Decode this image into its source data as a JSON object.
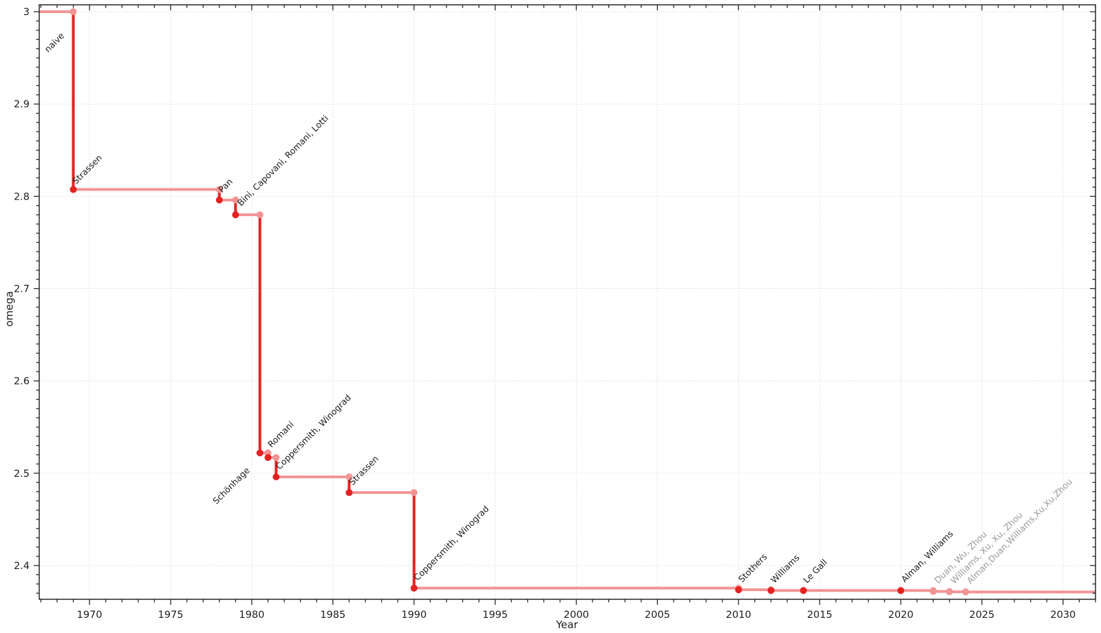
{
  "chart_data": {
    "type": "line",
    "subtype": "step",
    "title": "",
    "xlabel": "Year",
    "ylabel": "omega",
    "legend": "none",
    "grid": true,
    "xlim": [
      1966.9,
      2032.0
    ],
    "ylim": [
      2.3634,
      3.0075
    ],
    "xticks": [
      1970,
      1975,
      1980,
      1985,
      1990,
      1995,
      2000,
      2005,
      2010,
      2015,
      2020,
      2025,
      2030
    ],
    "yticks": [
      3,
      2.9,
      2.8,
      2.7,
      2.6,
      2.5,
      2.4
    ],
    "ytick_labels": [
      "3",
      "2.9",
      "2.8",
      "2.7",
      "2.6",
      "2.5",
      "2.4"
    ],
    "x_minor_step": 1,
    "y_minor_step": 0.01,
    "series_start": {
      "year": 1966.9,
      "omega": 3
    },
    "records": [
      {
        "name": "Strassen",
        "year": 1969,
        "omega": 2.8074,
        "muted": false,
        "label": {
          "dx": 4,
          "dy": -7,
          "anchor": "start"
        }
      },
      {
        "name": "Pan",
        "year": 1978,
        "omega": 2.796,
        "muted": false,
        "label": {
          "dx": 4,
          "dy": -10,
          "anchor": "start"
        }
      },
      {
        "name": "Bini, Capovani, Romani, Lotti",
        "year": 1979,
        "omega": 2.78,
        "muted": false,
        "label": {
          "dx": 8,
          "dy": -12,
          "anchor": "start"
        }
      },
      {
        "name": "Schönhage",
        "year": 1980.5,
        "omega": 2.522,
        "muted": false,
        "label": {
          "dx": -14,
          "dy": 26,
          "anchor": "end"
        }
      },
      {
        "name": "Romani",
        "year": 1981,
        "omega": 2.517,
        "muted": false,
        "label": {
          "dx": 5,
          "dy": -14,
          "anchor": "start"
        }
      },
      {
        "name": "Coppersmith, Winograd",
        "year": 1981.5,
        "omega": 2.496,
        "muted": false,
        "label": {
          "dx": 5,
          "dy": -10,
          "anchor": "start"
        }
      },
      {
        "name": "Strassen",
        "year": 1986,
        "omega": 2.479,
        "muted": false,
        "label": {
          "dx": 5,
          "dy": -10,
          "anchor": "start"
        }
      },
      {
        "name": "Coppersmith, Winograd",
        "year": 1990,
        "omega": 2.3755,
        "muted": false,
        "label": {
          "dx": 5,
          "dy": -10,
          "anchor": "start"
        }
      },
      {
        "name": "Stothers",
        "year": 2010,
        "omega": 2.3737,
        "muted": false,
        "label": {
          "dx": 5,
          "dy": -10,
          "anchor": "start"
        }
      },
      {
        "name": "Williams",
        "year": 2012,
        "omega": 2.3729,
        "muted": false,
        "label": {
          "dx": 5,
          "dy": -10,
          "anchor": "start"
        }
      },
      {
        "name": "Le Gall",
        "year": 2014,
        "omega": 2.37287,
        "muted": false,
        "label": {
          "dx": 5,
          "dy": -10,
          "anchor": "start"
        }
      },
      {
        "name": "Alman, Williams",
        "year": 2020,
        "omega": 2.37286,
        "muted": false,
        "label": {
          "dx": 6,
          "dy": -11,
          "anchor": "start"
        }
      },
      {
        "name": "Duan, Wu, Zhou",
        "year": 2022,
        "omega": 2.37188,
        "muted": true,
        "label": {
          "dx": 7,
          "dy": -11,
          "anchor": "start"
        }
      },
      {
        "name": "Williams, Xu, Xu, Zhou",
        "year": 2023,
        "omega": 2.37155,
        "muted": true,
        "label": {
          "dx": 7,
          "dy": -11,
          "anchor": "start"
        }
      },
      {
        "name": "Alman,Duan,Williams,Xu,Xu,Zhou",
        "year": 2024,
        "omega": 2.37134,
        "muted": true,
        "label": {
          "dx": 7,
          "dy": -11,
          "anchor": "start"
        }
      }
    ],
    "annotations": [
      {
        "text": "naive",
        "year": 1967.45,
        "omega": 2.9555,
        "anchor": "start"
      }
    ],
    "colors": {
      "strong": "#e42222",
      "light": "#f29494",
      "label": "#1a1a1a",
      "muted_label": "#999999",
      "grid": "#d8d8d8",
      "axis": "#262626",
      "tick_label": "#1c1c1c",
      "background": "#ffffff"
    }
  }
}
